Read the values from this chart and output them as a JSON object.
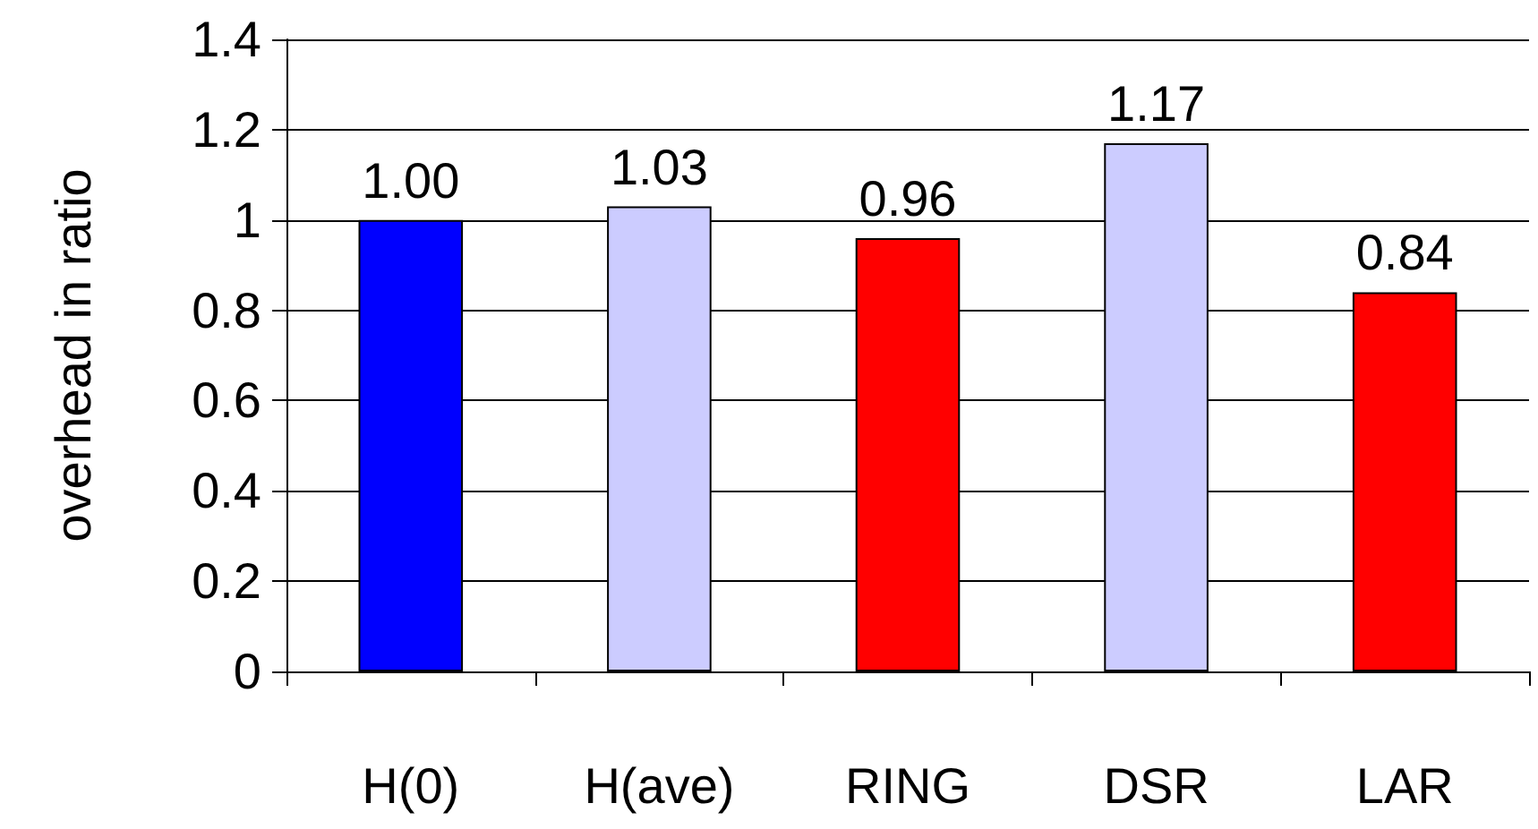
{
  "chart_data": {
    "type": "bar",
    "ylabel": "overhead in ratio",
    "categories": [
      "H(0)",
      "H(ave)",
      "RING",
      "DSR",
      "LAR"
    ],
    "values": [
      1.0,
      1.03,
      0.96,
      1.17,
      0.84
    ],
    "colors": [
      "#0000ff",
      "#ccccff",
      "#ff0000",
      "#ccccff",
      "#ff0000"
    ],
    "value_labels": [
      "1.00",
      "1.03",
      "0.96",
      "1.17",
      "0.84"
    ],
    "ylim": [
      0,
      1.4
    ],
    "yticks": [
      0,
      0.2,
      0.4,
      0.6,
      0.8,
      1,
      1.2,
      1.4
    ],
    "grid": "y"
  }
}
